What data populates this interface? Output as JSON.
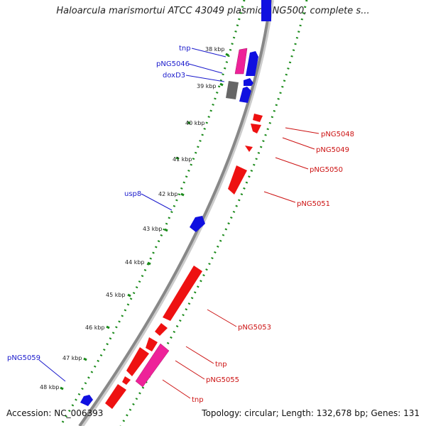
{
  "title": "Haloarcula marismortui ATCC 43049 plasmid pNG500, complete s...",
  "footer": {
    "accession": "Accession: NC_006393",
    "stats": "Topology: circular; Length: 132,678 bp; Genes: 131"
  },
  "colors": {
    "forward_gene": "#1010e0",
    "reverse_gene": "#ee1111",
    "transposase": "#ee2299",
    "pseudo": "#666666",
    "tick": "#1a8a1a",
    "backbone": "#888888",
    "left_label": "#1a1acc",
    "right_label": "#cc1111"
  },
  "scale_ticks": [
    "38 kbp",
    "39 kbp",
    "40 kbp",
    "41 kbp",
    "42 kbp",
    "43 kbp",
    "44 kbp",
    "45 kbp",
    "46 kbp",
    "47 kbp",
    "48 kbp"
  ],
  "left_labels": [
    "tnp",
    "pNG5046",
    "doxD3",
    "usp8",
    "pNG5059"
  ],
  "right_labels": [
    "pNG5048",
    "pNG5049",
    "pNG5050",
    "pNG5051",
    "pNG5053",
    "tnp",
    "pNG5055",
    "tnp"
  ]
}
